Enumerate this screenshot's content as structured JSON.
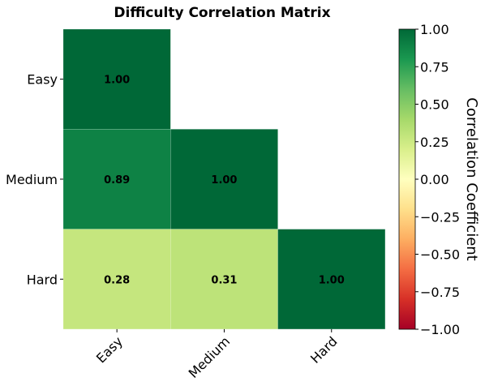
{
  "chart_data": {
    "type": "heatmap",
    "title": "Difficulty Correlation Matrix",
    "rows": [
      "Easy",
      "Medium",
      "Hard"
    ],
    "columns": [
      "Easy",
      "Medium",
      "Hard"
    ],
    "matrix": [
      [
        1.0,
        null,
        null
      ],
      [
        0.89,
        1.0,
        null
      ],
      [
        0.28,
        0.31,
        1.0
      ]
    ],
    "value_format": "2 decimals",
    "masked": "upper triangle",
    "colormap": "RdYlGn",
    "colorbar": {
      "label": "Correlation Coefficient",
      "range": [
        -1.0,
        1.0
      ],
      "ticks": [
        "1.00",
        "0.75",
        "0.50",
        "0.25",
        "0.00",
        "−0.25",
        "−0.50",
        "−0.75",
        "−1.00"
      ],
      "tick_values": [
        1.0,
        0.75,
        0.5,
        0.25,
        0.0,
        -0.25,
        -0.5,
        -0.75,
        -1.0
      ]
    }
  }
}
